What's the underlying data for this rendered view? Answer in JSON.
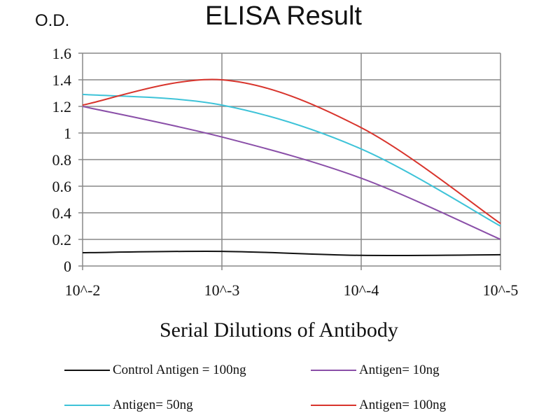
{
  "chart_data": {
    "type": "line",
    "title": "ELISA Result",
    "ylabel": "O.D.",
    "xlabel": "Serial Dilutions  of Antibody",
    "categories": [
      "10^-2",
      "10^-3",
      "10^-4",
      "10^-5"
    ],
    "yticks": [
      "0",
      "0.2",
      "0.4",
      "0.6",
      "0.8",
      "1",
      "1.2",
      "1.4",
      "1.6"
    ],
    "ylim": [
      0,
      1.6
    ],
    "grid": true,
    "legend": "bottom",
    "series": [
      {
        "name": "Control Antigen = 100ng",
        "color": "#111111",
        "values": [
          0.1,
          0.11,
          0.08,
          0.085
        ]
      },
      {
        "name": "Antigen= 10ng",
        "color": "#8a4fa8",
        "values": [
          1.2,
          0.97,
          0.66,
          0.2
        ]
      },
      {
        "name": "Antigen= 50ng",
        "color": "#3ec3d8",
        "values": [
          1.29,
          1.21,
          0.88,
          0.3
        ]
      },
      {
        "name": "Antigen= 100ng",
        "color": "#d8342c",
        "values": [
          1.21,
          1.4,
          1.04,
          0.32
        ]
      }
    ]
  }
}
